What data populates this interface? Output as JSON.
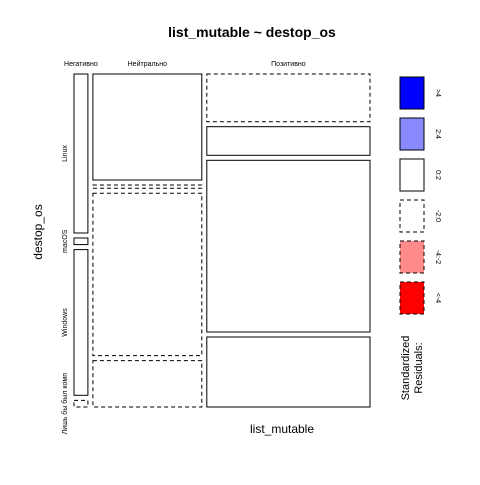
{
  "chart_data": {
    "type": "mosaic",
    "title": "list_mutable ~ destop_os",
    "xlabel": "list_mutable",
    "ylabel": "destop_os",
    "x_categories": [
      "Негативно",
      "Нейтрально",
      "Позитивно"
    ],
    "y_categories": [
      "Linux",
      "macOS",
      "Windows",
      "Лишь бы был комп"
    ],
    "column_widths": [
      0.0486,
      0.3807,
      0.5707
    ],
    "cells": [
      {
        "x": "Негативно",
        "y": "Linux",
        "height": 0.5,
        "residual_class": "0:2"
      },
      {
        "x": "Негативно",
        "y": "macOS",
        "height": 0.0208,
        "residual_class": "0:2"
      },
      {
        "x": "Негативно",
        "y": "Windows",
        "height": 0.4583,
        "residual_class": "0:2"
      },
      {
        "x": "Негативно",
        "y": "Лишь бы был комп",
        "height": 0.0208,
        "residual_class": "-2:0"
      },
      {
        "x": "Нейтрально",
        "y": "Linux",
        "height": 0.3333,
        "residual_class": "0:2"
      },
      {
        "x": "Нейтрально",
        "y": "macOS",
        "height": 0.0104,
        "residual_class": "-2:0"
      },
      {
        "x": "Нейтрально",
        "y": "Windows",
        "height": 0.5104,
        "residual_class": "-2:0"
      },
      {
        "x": "Нейтрально",
        "y": "Лишь бы был комп",
        "height": 0.1458,
        "residual_class": "-2:0"
      },
      {
        "x": "Позитивно",
        "y": "Linux",
        "height": 0.15,
        "residual_class": "-2:0"
      },
      {
        "x": "Позитивно",
        "y": "macOS",
        "height": 0.09,
        "residual_class": "0:2"
      },
      {
        "x": "Позитивно",
        "y": "Windows",
        "height": 0.54,
        "residual_class": "0:2"
      },
      {
        "x": "Позитивно",
        "y": "Лишь бы был комп",
        "height": 0.22,
        "residual_class": "0:2"
      }
    ],
    "legend": {
      "title": [
        "Standardized",
        "Residuals:"
      ],
      "position": "right",
      "entries": [
        {
          "label": ">4",
          "fill": "#0000ff",
          "dashed": false
        },
        {
          "label": "2:4",
          "fill": "#8a8aff",
          "dashed": false
        },
        {
          "label": "0:2",
          "fill": "#ffffff",
          "dashed": false
        },
        {
          "label": "-2:0",
          "fill": "#ffffff",
          "dashed": true
        },
        {
          "label": "-4:-2",
          "fill": "#ff8a8a",
          "dashed": true
        },
        {
          "label": "<-4",
          "fill": "#ff0000",
          "dashed": true
        }
      ]
    }
  }
}
